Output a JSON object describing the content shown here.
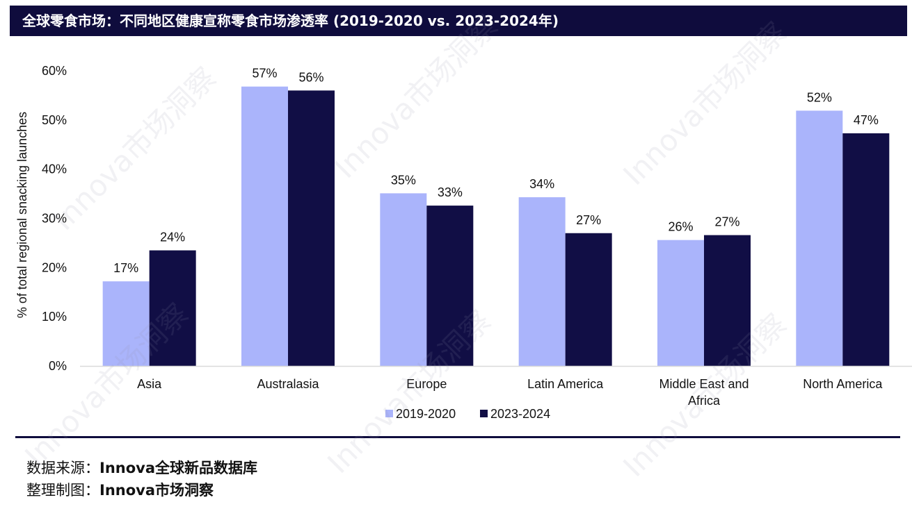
{
  "title": "全球零食市场：不同地区健康宣称零食市场渗透率 (2019-2020 vs. 2023-2024年)",
  "watermark": "Innova市场洞察",
  "footer": {
    "source_label": "数据来源：",
    "source_value": "Innova全球新品数据库",
    "chart_label": "整理制图：",
    "chart_value": "Innova市场洞察"
  },
  "chart_data": {
    "type": "bar",
    "title": "",
    "xlabel": "",
    "ylabel": "% of total regional snacking launches",
    "ylim": [
      0,
      60
    ],
    "yticks": [
      0,
      10,
      20,
      30,
      40,
      50,
      60
    ],
    "ytick_labels": [
      "0%",
      "10%",
      "20%",
      "30%",
      "40%",
      "50%",
      "60%"
    ],
    "categories": [
      [
        "Asia"
      ],
      [
        "Australasia"
      ],
      [
        "Europe"
      ],
      [
        "Latin America"
      ],
      [
        "Middle East and",
        "Africa"
      ],
      [
        "North America"
      ]
    ],
    "series": [
      {
        "name": "2019-2020",
        "color": "#aab4fb",
        "values": [
          17.2,
          56.8,
          35.1,
          34.3,
          25.6,
          51.9
        ],
        "labels": [
          "17%",
          "57%",
          "35%",
          "34%",
          "26%",
          "52%"
        ]
      },
      {
        "name": "2023-2024",
        "color": "#110e45",
        "values": [
          23.5,
          56.0,
          32.6,
          27.0,
          26.6,
          47.3
        ],
        "labels": [
          "24%",
          "56%",
          "33%",
          "27%",
          "27%",
          "47%"
        ]
      }
    ],
    "legend_position": "bottom-center",
    "grid": false
  }
}
